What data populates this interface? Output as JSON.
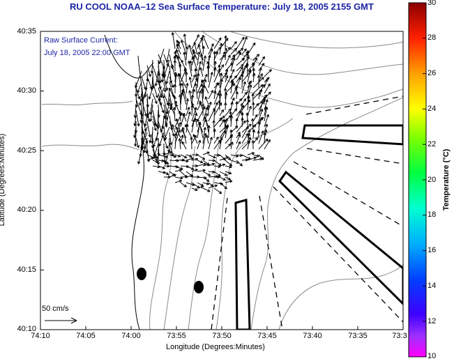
{
  "title": "RU COOL  NOAA–12  Sea Surface Temperature:  July 18, 2005 2155 GMT",
  "overlay": {
    "line1": "Raw Surface Current:",
    "line2": "July 18, 2005 22:00 GMT"
  },
  "scale_label": "50 cm/s",
  "axes": {
    "xlabel": "Longitude (Degrees:Minutes)",
    "ylabel": "Latitude (Degrees:Minutes)",
    "xticks": [
      "74:10",
      "74:05",
      "74:00",
      "73:55",
      "73:50",
      "73:45",
      "73:40",
      "73:35",
      "73:3"
    ],
    "yticks": [
      "40:35",
      "40:30",
      "40:25",
      "40:20",
      "40:15",
      "40:10"
    ]
  },
  "colorbar": {
    "label": "Temperature (°C)",
    "ticks": [
      "30",
      "28",
      "26",
      "24",
      "22",
      "20",
      "18",
      "16",
      "14",
      "12",
      "10"
    ],
    "range": [
      10,
      30
    ]
  },
  "colors": {
    "title": "#1c25a6",
    "land": "#ffffff",
    "contour": "#8a8a8a"
  }
}
